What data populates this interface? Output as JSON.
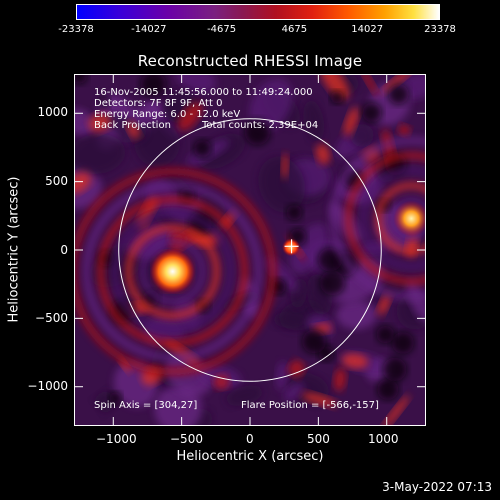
{
  "colorbar": {
    "labels": [
      "-23378",
      "-14027",
      "-4675",
      "4675",
      "14027",
      "23378"
    ]
  },
  "chart_data": {
    "type": "heatmap",
    "title": "Reconstructed RHESSI Image",
    "xlabel": "Heliocentric X (arcsec)",
    "ylabel": "Heliocentric Y (arcsec)",
    "xlim": [
      -1280,
      1280
    ],
    "ylim": [
      -1280,
      1280
    ],
    "xticks": [
      -1000,
      -500,
      0,
      500,
      1000
    ],
    "yticks": [
      -1000,
      -500,
      0,
      500,
      1000
    ],
    "color_range": [
      -23378,
      23378
    ],
    "solar_limb_radius_arcsec": 960,
    "features": [
      {
        "label": "primary source",
        "x": -566,
        "y": -157
      },
      {
        "label": "secondary source",
        "x": 1180,
        "y": 230
      },
      {
        "label": "minor source",
        "x": 300,
        "y": 20
      }
    ],
    "annotations": [
      "16-Nov-2005 11:45:56.000 to 11:49:24.000",
      "Detectors: 7F 8F 9F, Att 0",
      "Energy Range: 6.0 - 12.0 keV",
      "Back Projection",
      "Total counts: 2.39E+04",
      "Spin Axis = [304,27]",
      "Flare Position = [-566,-157]"
    ]
  },
  "footer": {
    "timestamp": "3-May-2022 07:13"
  }
}
